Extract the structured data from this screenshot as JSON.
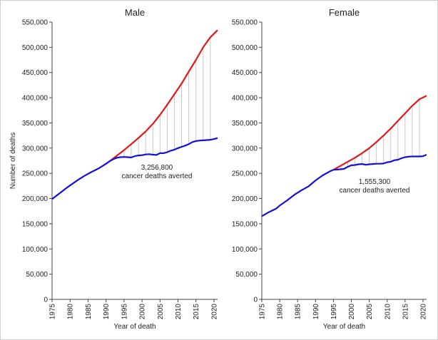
{
  "chart_data": [
    {
      "type": "line",
      "title": "Male",
      "xlabel": "Year of death",
      "ylabel": "Number of deaths",
      "xlim": [
        1975,
        2021
      ],
      "ylim": [
        0,
        550000
      ],
      "xticks": [
        1975,
        1980,
        1985,
        1990,
        1995,
        2000,
        2005,
        2010,
        2015,
        2020
      ],
      "yticks": [
        0,
        50000,
        100000,
        150000,
        200000,
        250000,
        300000,
        350000,
        400000,
        450000,
        500000,
        550000
      ],
      "ytick_labels": [
        "0",
        "50,000",
        "100,000",
        "150,000",
        "200,000",
        "250,000",
        "300,000",
        "350,000",
        "400,000",
        "450,000",
        "500,000",
        "550,000"
      ],
      "annotation": {
        "value": "3,256,800",
        "text": "cancer deaths averted"
      },
      "series": [
        {
          "color": "#1010d8",
          "x": [
            1975,
            1977,
            1979,
            1980,
            1982,
            1984,
            1986,
            1988,
            1990,
            1991,
            1992,
            1993,
            1994,
            1995,
            1996,
            1997,
            1998,
            1999,
            2000,
            2001,
            2002,
            2003,
            2004,
            2005,
            2006,
            2007,
            2008,
            2009,
            2010,
            2011,
            2012,
            2013,
            2014,
            2015,
            2016,
            2017,
            2018,
            2019,
            2020,
            2021
          ],
          "y": [
            199000,
            210000,
            221000,
            226000,
            236000,
            245000,
            253000,
            260000,
            269000,
            274000,
            278000,
            281000,
            282000,
            282500,
            282000,
            281500,
            284000,
            285500,
            286000,
            287500,
            288000,
            287000,
            286500,
            290000,
            290000,
            292000,
            295000,
            297000,
            300000,
            302500,
            305000,
            308000,
            312000,
            314000,
            315000,
            315500,
            316000,
            316500,
            318000,
            320000
          ]
        },
        {
          "color": "#e01818",
          "x": [
            1991,
            1993,
            1995,
            1997,
            1999,
            2001,
            2003,
            2005,
            2007,
            2009,
            2011,
            2013,
            2015,
            2017,
            2019,
            2020,
            2021
          ],
          "y": [
            274000,
            285000,
            296000,
            308000,
            320000,
            333000,
            348000,
            366000,
            386000,
            407000,
            428000,
            452000,
            475000,
            500000,
            520000,
            527000,
            534000
          ]
        }
      ]
    },
    {
      "type": "line",
      "title": "Female",
      "xlabel": "Year of death",
      "xlim": [
        1975,
        2021
      ],
      "ylim": [
        0,
        550000
      ],
      "xticks": [
        1975,
        1980,
        1985,
        1990,
        1995,
        2000,
        2005,
        2010,
        2015,
        2020
      ],
      "yticks": [
        0,
        50000,
        100000,
        150000,
        200000,
        250000,
        300000,
        350000,
        400000,
        450000,
        500000,
        550000
      ],
      "ytick_labels": [
        "0",
        "50,000",
        "100,000",
        "150,000",
        "200,000",
        "250,000",
        "300,000",
        "350,000",
        "400,000",
        "450,000",
        "500,000",
        "550,000"
      ],
      "annotation": {
        "value": "1,555,300",
        "text": "cancer deaths averted"
      },
      "series": [
        {
          "color": "#1010d8",
          "x": [
            1975,
            1977,
            1979,
            1980,
            1982,
            1984,
            1986,
            1988,
            1990,
            1992,
            1994,
            1995,
            1996,
            1997,
            1998,
            1999,
            2000,
            2001,
            2002,
            2003,
            2004,
            2005,
            2006,
            2007,
            2008,
            2009,
            2010,
            2011,
            2012,
            2013,
            2014,
            2015,
            2016,
            2017,
            2018,
            2019,
            2020,
            2021
          ],
          "y": [
            165000,
            173000,
            180000,
            186000,
            196000,
            207000,
            216000,
            224000,
            236000,
            246000,
            254000,
            257000,
            257500,
            258000,
            259000,
            263000,
            266000,
            266500,
            268000,
            268500,
            267000,
            268000,
            268500,
            269000,
            269000,
            269500,
            272000,
            273000,
            276000,
            277000,
            280000,
            282000,
            283000,
            283500,
            283500,
            283500,
            284000,
            287000
          ]
        },
        {
          "color": "#e01818",
          "x": [
            1995,
            1997,
            1999,
            2001,
            2003,
            2005,
            2007,
            2009,
            2011,
            2013,
            2015,
            2017,
            2019,
            2021
          ],
          "y": [
            257000,
            265000,
            273000,
            281000,
            290000,
            300000,
            312000,
            325000,
            339000,
            354000,
            369000,
            384000,
            397000,
            404000
          ]
        }
      ]
    }
  ]
}
